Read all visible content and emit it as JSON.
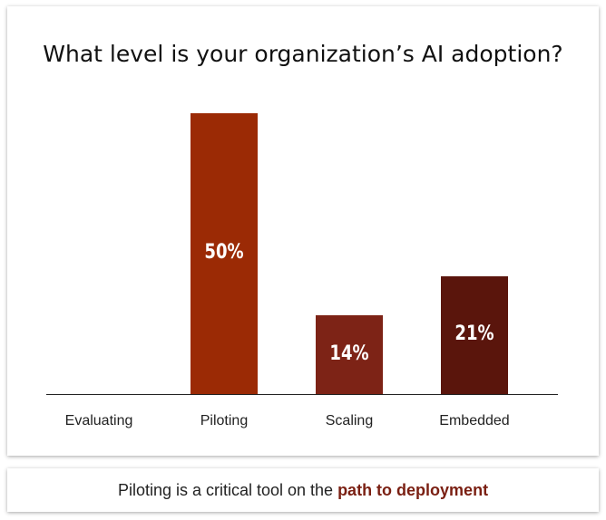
{
  "chart_data": {
    "type": "bar",
    "title": "What level is your organization’s AI adoption?",
    "categories": [
      "Evaluating",
      "Piloting",
      "Scaling",
      "Embedded"
    ],
    "values": [
      0,
      50,
      14,
      21
    ],
    "value_labels": [
      "",
      "50%",
      "14%",
      "21%"
    ],
    "colors": [
      "#9b2a05",
      "#9b2a05",
      "#7d2316",
      "#5a150c"
    ],
    "ylim": [
      0,
      50
    ],
    "grid": false,
    "legend": "none"
  },
  "footer": {
    "text": "Piloting is a critical tool on the",
    "highlight": "path to deployment"
  }
}
